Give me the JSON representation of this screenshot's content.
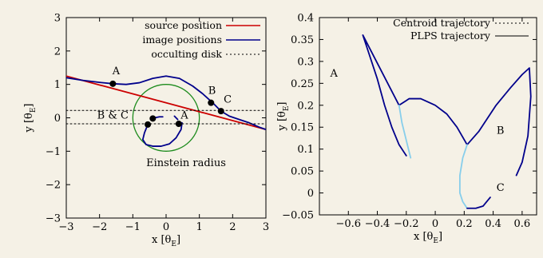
{
  "chart_data": [
    {
      "type": "line",
      "xlabel": "x [θ",
      "xlabel_sub": "E",
      "xlabel_end": "]",
      "ylabel": "y [θ",
      "ylabel_sub": "E",
      "ylabel_end": "]",
      "xlim": [
        -3,
        3
      ],
      "ylim": [
        -3,
        3
      ],
      "xticks": [
        -3,
        -2,
        -1,
        0,
        1,
        2,
        3
      ],
      "yticks": [
        -3,
        -2,
        -1,
        0,
        1,
        2,
        3
      ],
      "xtick_labels": [
        "−3",
        "−2",
        "−1",
        "0",
        "1",
        "2",
        "3"
      ],
      "ytick_labels": [
        "−3",
        "−2",
        "−1",
        "0",
        "1",
        "2",
        "3"
      ],
      "legend_position": "top-right",
      "series": [
        {
          "name": "source position",
          "color": "#cc0000",
          "style": "solid",
          "x": [
            -3,
            3
          ],
          "y": [
            1.25,
            -0.35
          ]
        },
        {
          "name": "image positions",
          "color": "#00008b",
          "style": "solid",
          "x": [
            -3,
            -2.5,
            -2,
            -1.6,
            -1.2,
            -0.8,
            -0.4,
            0,
            0.4,
            0.8,
            1.1,
            1.4,
            1.65,
            1.9,
            2.2,
            2.5,
            2.8,
            3
          ],
          "y": [
            1.2,
            1.12,
            1.06,
            1.02,
            1.0,
            1.05,
            1.18,
            1.25,
            1.18,
            0.95,
            0.72,
            0.45,
            0.2,
            0.05,
            -0.05,
            -0.15,
            -0.28,
            -0.35
          ]
        },
        {
          "name": "",
          "color": "#00008b",
          "style": "solid",
          "x": [
            -0.55,
            -0.65,
            -0.7,
            -0.6,
            -0.4,
            -0.15,
            0.1,
            0.3,
            0.45,
            0.48,
            0.4
          ],
          "y": [
            -0.2,
            -0.45,
            -0.65,
            -0.8,
            -0.85,
            -0.85,
            -0.78,
            -0.6,
            -0.35,
            -0.15,
            -0.15
          ]
        },
        {
          "name": "",
          "color": "#00008b",
          "style": "solid",
          "x": [
            -0.35,
            -0.2,
            -0.1
          ],
          "y": [
            0.0,
            0.03,
            0.03
          ]
        },
        {
          "name": "",
          "color": "#00008b",
          "style": "solid",
          "x": [
            0.25,
            0.35
          ],
          "y": [
            0.05,
            -0.05
          ]
        },
        {
          "name": "occulting disk",
          "color": "#000000",
          "style": "dotted",
          "x": [
            -3,
            3
          ],
          "y": [
            0.22,
            0.22
          ]
        },
        {
          "name": "",
          "color": "#000000",
          "style": "dotted",
          "x": [
            -3,
            3
          ],
          "y": [
            -0.18,
            -0.18
          ]
        }
      ],
      "circle": {
        "center": [
          0,
          0
        ],
        "radius": 1,
        "color": "#1e8c1e"
      },
      "points": [
        {
          "label": "A",
          "x": -1.6,
          "y": 1.02
        },
        {
          "label": "B",
          "x": 1.35,
          "y": 0.45
        },
        {
          "label": "C",
          "x": 1.65,
          "y": 0.2
        },
        {
          "label": "",
          "x": -0.55,
          "y": -0.2
        },
        {
          "label": "",
          "x": -0.4,
          "y": -0.02
        },
        {
          "label": "",
          "x": 0.38,
          "y": -0.18
        }
      ],
      "annotations": [
        {
          "text": "A",
          "x": -1.5,
          "y": 1.3
        },
        {
          "text": "B",
          "x": 1.38,
          "y": 0.72
        },
        {
          "text": "C",
          "x": 1.85,
          "y": 0.45
        },
        {
          "text": "B & C",
          "x": -1.6,
          "y": -0.02
        },
        {
          "text": "A",
          "x": 0.55,
          "y": -0.02
        },
        {
          "text": "Einstein radius",
          "x": 0.6,
          "y": -1.45
        }
      ]
    },
    {
      "type": "line",
      "xlabel": "x [θ",
      "xlabel_sub": "E",
      "xlabel_end": "]",
      "ylabel": "y [θ",
      "ylabel_sub": "E",
      "ylabel_end": "]",
      "xlim": [
        -0.8,
        0.7
      ],
      "ylim": [
        -0.05,
        0.4
      ],
      "xticks": [
        -0.6,
        -0.4,
        -0.2,
        0,
        0.2,
        0.4,
        0.6
      ],
      "yticks": [
        -0.05,
        0,
        0.05,
        0.1,
        0.15,
        0.2,
        0.25,
        0.3,
        0.35,
        0.4
      ],
      "xtick_labels": [
        "−0.6",
        "−0.4",
        "−0.2",
        "0",
        "0.2",
        "0.4",
        "0.6"
      ],
      "ytick_labels": [
        "−0.05",
        "0",
        "0.05",
        "0.1",
        "0.15",
        "0.2",
        "0.25",
        "0.3",
        "0.35",
        "0.4"
      ],
      "legend_position": "top-right",
      "legend": [
        {
          "name": "Centroid trajectory",
          "style": "dotted",
          "color": "#000000"
        },
        {
          "name": "PLPS trajectory",
          "style": "solid",
          "color": "#000000"
        }
      ],
      "series": [
        {
          "name": "",
          "color": "#00008b",
          "style": "solid",
          "x": [
            -0.2,
            -0.25,
            -0.3,
            -0.35,
            -0.4,
            -0.45,
            -0.5,
            -0.25,
            -0.18,
            -0.1,
            0.0,
            0.08,
            0.15,
            0.22,
            0.3,
            0.42,
            0.52,
            0.6,
            0.65,
            0.66,
            0.64,
            0.6,
            0.56
          ],
          "y": [
            0.085,
            0.11,
            0.15,
            0.2,
            0.26,
            0.31,
            0.36,
            0.2,
            0.215,
            0.215,
            0.2,
            0.18,
            0.15,
            0.11,
            0.14,
            0.2,
            0.24,
            0.27,
            0.285,
            0.22,
            0.13,
            0.07,
            0.04
          ]
        },
        {
          "name": "",
          "color": "#87ceeb",
          "style": "solid",
          "x": [
            -0.25,
            -0.23,
            -0.2,
            -0.17
          ],
          "y": [
            0.2,
            0.16,
            0.12,
            0.08
          ]
        },
        {
          "name": "",
          "color": "#87ceeb",
          "style": "solid",
          "x": [
            0.22,
            0.19,
            0.17,
            0.17,
            0.19,
            0.22
          ],
          "y": [
            0.11,
            0.08,
            0.04,
            0.0,
            -0.02,
            -0.035
          ]
        },
        {
          "name": "",
          "color": "#00008b",
          "style": "solid",
          "x": [
            0.22,
            0.28,
            0.33,
            0.38
          ],
          "y": [
            -0.035,
            -0.035,
            -0.03,
            -0.01
          ]
        }
      ],
      "annotations": [
        {
          "text": "A",
          "x": -0.7,
          "y": 0.265
        },
        {
          "text": "B",
          "x": 0.45,
          "y": 0.135
        },
        {
          "text": "C",
          "x": 0.45,
          "y": 0.005
        }
      ]
    }
  ]
}
